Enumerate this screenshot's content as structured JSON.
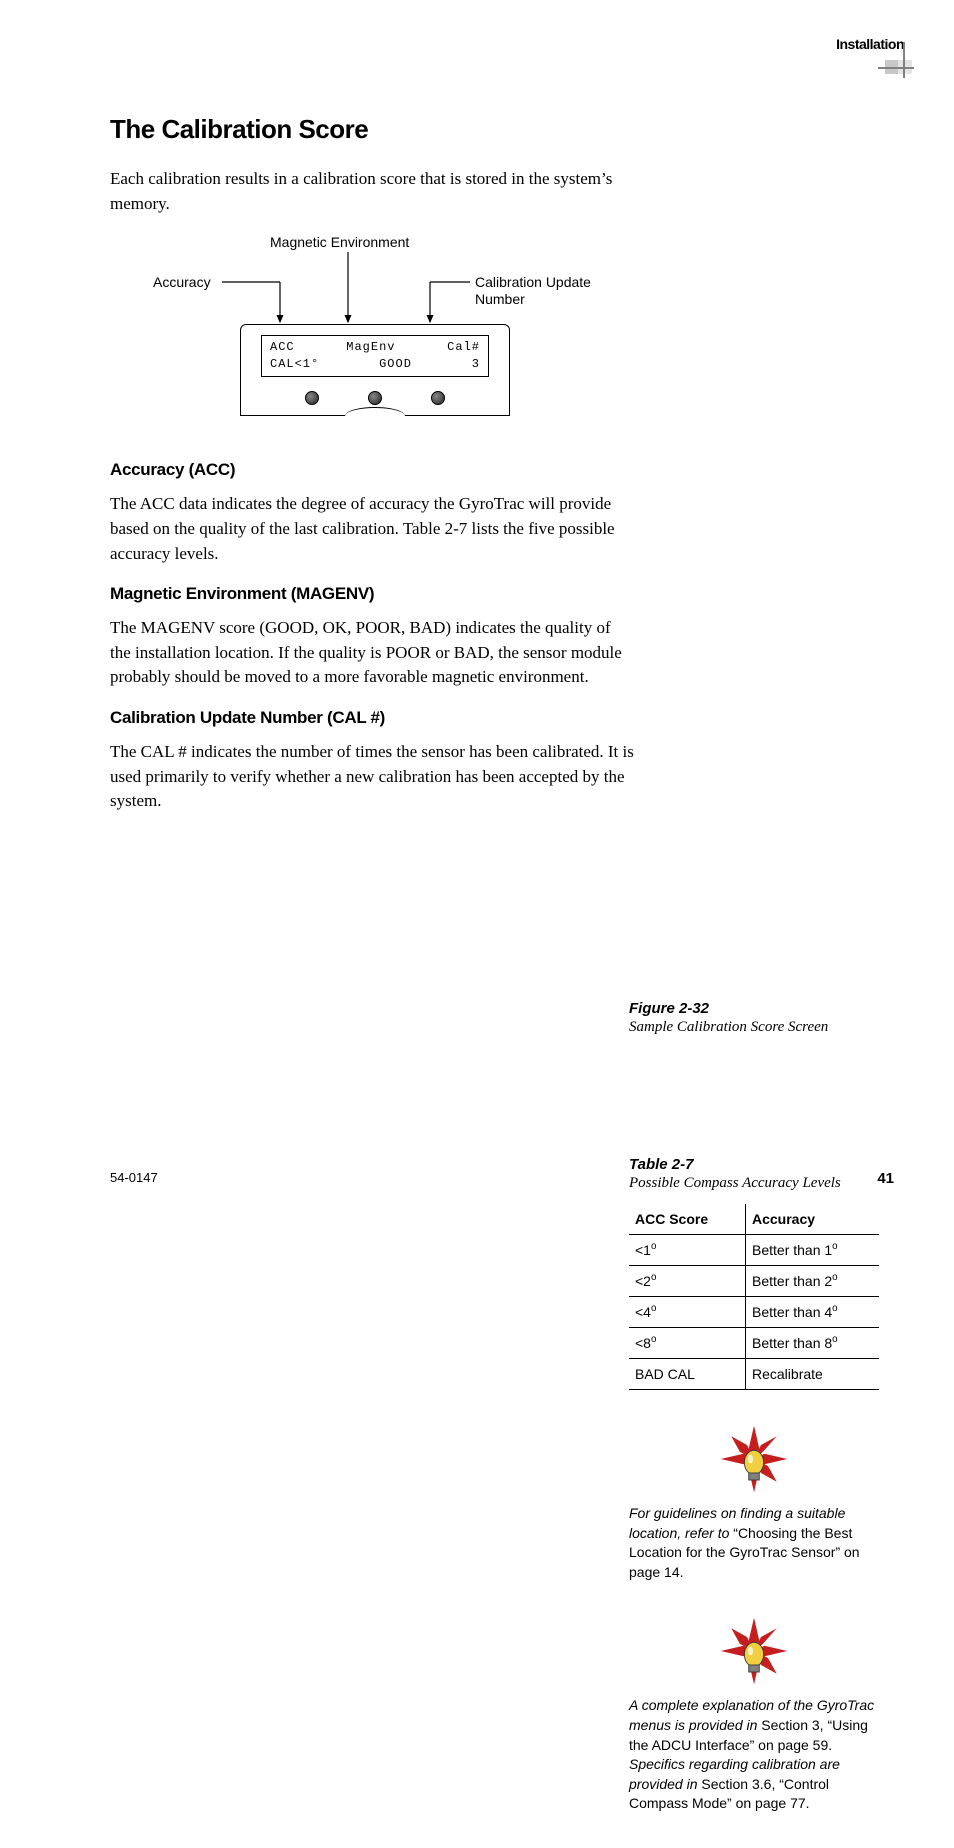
{
  "header": {
    "section": "Installation"
  },
  "title": "The Calibration Score",
  "intro": "Each calibration results in a calibration score that is stored in the system’s memory.",
  "figure": {
    "label": "Figure 2-32",
    "caption": "Sample Calibration Score Screen",
    "annotations": {
      "top": "Magnetic Environment",
      "left": "Accuracy",
      "right": "Calibration Update Number"
    },
    "lcd": {
      "row1": [
        "ACC",
        "MagEnv",
        "Cal#"
      ],
      "row2": [
        "CAL<1°",
        "GOOD",
        "3"
      ]
    }
  },
  "sections": [
    {
      "heading": "Accuracy (ACC)",
      "body": "The ACC data indicates the degree of accuracy the GyroTrac will provide based on the quality of the last calibration. Table 2-7 lists the five possible accuracy levels."
    },
    {
      "heading": "Magnetic Environment (MAGENV)",
      "body": "The MAGENV score (GOOD, OK, POOR, BAD) indicates the quality of the installation location. If the quality is POOR or BAD, the sensor module probably should be moved to a more favorable magnetic environment."
    },
    {
      "heading": "Calibration Update Number (CAL #)",
      "body": "The CAL # indicates the number of times the sensor has been calibrated. It is used primarily to verify whether a new calibration has been accepted by the system."
    }
  ],
  "table": {
    "label": "Table 2-7",
    "caption": "Possible Compass Accuracy Levels",
    "columns": [
      "ACC Score",
      "Accuracy"
    ],
    "rows": [
      [
        "<1",
        "Better than 1"
      ],
      [
        "<2",
        "Better than 2"
      ],
      [
        "<4",
        "Better than 4"
      ],
      [
        "<8",
        "Better than 8"
      ],
      [
        "BAD CAL",
        "Recalibrate"
      ]
    ],
    "row_has_degree": [
      true,
      true,
      true,
      true,
      false
    ]
  },
  "tips": [
    {
      "parts": [
        {
          "style": "ital",
          "text": "For guidelines on finding a suitable location, refer to "
        },
        {
          "style": "",
          "text": "“Choosing the Best Location for the GyroTrac Sensor” on page 14."
        }
      ]
    },
    {
      "parts": [
        {
          "style": "ital",
          "text": "A complete explanation of the GyroTrac menus is provided in "
        },
        {
          "style": "",
          "text": "Section 3, “Using the ADCU Interface” on page 59. "
        },
        {
          "style": "ital",
          "text": "Specifics regarding calibration are provided in "
        },
        {
          "style": "",
          "text": "Section 3.6, “Control Compass Mode” on page 77."
        }
      ]
    }
  ],
  "footer": {
    "docnum": "54-0147",
    "page": "41"
  },
  "colors": {
    "burst": "#c41e1e",
    "bulb": "#f0d040",
    "bulb_base": "#808080"
  }
}
